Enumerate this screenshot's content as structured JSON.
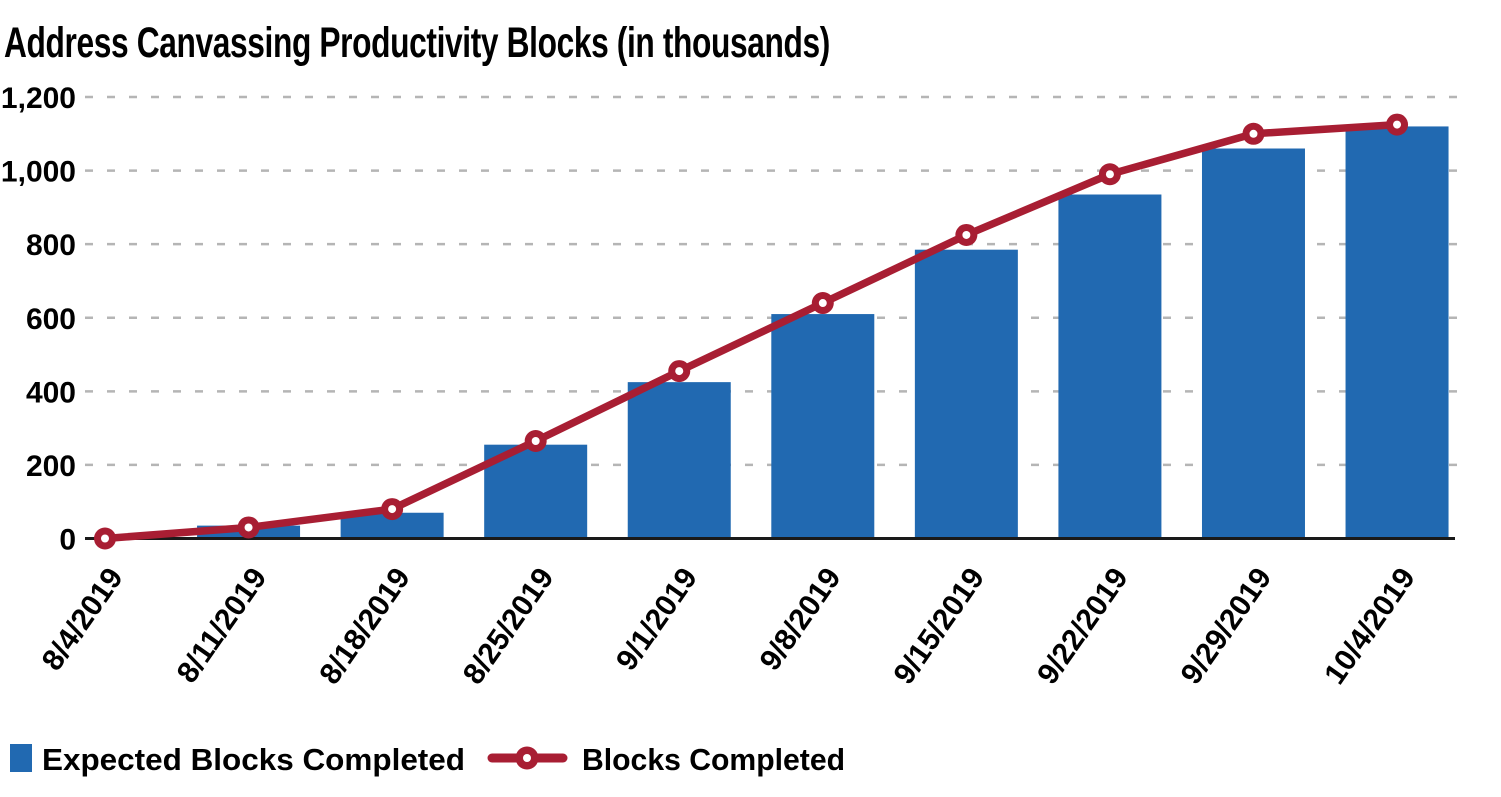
{
  "title": "Address Canvassing Productivity Blocks (in thousands)",
  "colors": {
    "bar": "#2169B1",
    "line": "#A81E33",
    "grid": "#B5B5B5",
    "axis": "#1A1A1A",
    "text": "#000000",
    "background": "#FFFFFF"
  },
  "legend": {
    "items": [
      {
        "label": "Expected Blocks Completed",
        "symbol": "square",
        "color": "#2169B1"
      },
      {
        "label": "Blocks Completed",
        "symbol": "line-with-open-circle",
        "color": "#A81E33"
      }
    ]
  },
  "chart_data": {
    "type": "bar+line",
    "title": "Address Canvassing Productivity Blocks (in thousands)",
    "categories": [
      "8/4/2019",
      "8/11/2019",
      "8/18/2019",
      "8/25/2019",
      "9/1/2019",
      "9/8/2019",
      "9/15/2019",
      "9/22/2019",
      "9/29/2019",
      "10/4/2019"
    ],
    "series": [
      {
        "name": "Expected Blocks Completed",
        "kind": "bar",
        "color": "#2169B1",
        "values": [
          0,
          35,
          70,
          255,
          425,
          610,
          785,
          935,
          1060,
          1120
        ]
      },
      {
        "name": "Blocks Completed",
        "kind": "line",
        "color": "#A81E33",
        "marker": "open-circle",
        "values": [
          0,
          30,
          80,
          265,
          455,
          640,
          825,
          990,
          1100,
          1125
        ]
      }
    ],
    "xlabel": "",
    "ylabel": "",
    "ylim": [
      0,
      1200
    ],
    "yticks": [
      0,
      200,
      400,
      600,
      800,
      1000,
      1200
    ],
    "ytick_labels": [
      "0",
      "200",
      "400",
      "600",
      "800",
      "1,000",
      "1,200"
    ],
    "grid": "horizontal-dashed",
    "legend_position": "bottom-left"
  }
}
